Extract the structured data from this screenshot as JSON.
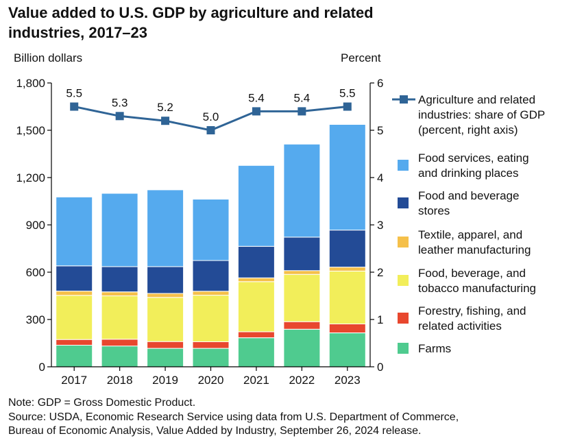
{
  "title_line1": "Value added to U.S. GDP by agriculture and related",
  "title_line2": "industries, 2017–23",
  "note": "Note: GDP = Gross Domestic Product.",
  "source_line1": "Source: USDA, Economic Research Service using data from U.S. Department of Commerce,",
  "source_line2": "Bureau of Economic Analysis, Value Added by Industry, September 26, 2024 release.",
  "chart_data": {
    "type": "bar",
    "stacked": true,
    "title": "Value added to U.S. GDP by agriculture and related industries, 2017–23",
    "categories": [
      "2017",
      "2018",
      "2019",
      "2020",
      "2021",
      "2022",
      "2023"
    ],
    "ylabel": "Billion dollars",
    "y2label": "Percent",
    "ylim": [
      0,
      1800
    ],
    "y2lim": [
      0,
      6
    ],
    "yticks": [
      "0",
      "300",
      "600",
      "900",
      "1,200",
      "1,500",
      "1,800"
    ],
    "y2ticks": [
      "0",
      "1",
      "2",
      "3",
      "4",
      "5",
      "6"
    ],
    "series": [
      {
        "name": "Farms",
        "color": "#4fcb8f",
        "values": [
          137,
          132,
          117,
          117,
          184,
          238,
          215
        ]
      },
      {
        "name": "Forestry, fishing, and related activities",
        "color": "#e8472e",
        "values": [
          36,
          43,
          43,
          42,
          38,
          48,
          57
        ]
      },
      {
        "name": "Food, beverage, and tobacco manufacturing",
        "color": "#f2ee5a",
        "values": [
          280,
          275,
          280,
          295,
          318,
          300,
          335
        ]
      },
      {
        "name": "Textile, apparel, and leather manufacturing",
        "color": "#f5c04a",
        "values": [
          27,
          25,
          25,
          25,
          24,
          24,
          25
        ]
      },
      {
        "name": "Food and beverage stores",
        "color": "#234b96",
        "values": [
          160,
          160,
          170,
          195,
          200,
          212,
          235
        ]
      },
      {
        "name": "Food services, eating and drinking places",
        "color": "#55aaee",
        "values": [
          437,
          465,
          487,
          389,
          513,
          590,
          670
        ]
      }
    ],
    "line_series": {
      "name": "Agriculture and related industries: share of GDP (percent, right axis)",
      "color": "#2f6496",
      "axis": "right",
      "values": [
        5.5,
        5.3,
        5.2,
        5.0,
        5.4,
        5.4,
        5.5
      ],
      "labels": [
        "5.5",
        "5.3",
        "5.2",
        "5.0",
        "5.4",
        "5.4",
        "5.5"
      ]
    },
    "legend": [
      {
        "lines": [
          "Agriculture and related",
          "industries: share of GDP",
          "(percent, right axis)"
        ],
        "color": "#2f6496",
        "kind": "line"
      },
      {
        "lines": [
          "Food services, eating",
          "and drinking places"
        ],
        "color": "#55aaee",
        "kind": "box"
      },
      {
        "lines": [
          "Food and beverage",
          "stores"
        ],
        "color": "#234b96",
        "kind": "box"
      },
      {
        "lines": [
          "Textile, apparel, and",
          "leather manufacturing"
        ],
        "color": "#f5c04a",
        "kind": "box"
      },
      {
        "lines": [
          "Food, beverage, and",
          "tobacco manufacturing"
        ],
        "color": "#f2ee5a",
        "kind": "box"
      },
      {
        "lines": [
          "Forestry, fishing, and",
          "related activities"
        ],
        "color": "#e8472e",
        "kind": "box"
      },
      {
        "lines": [
          "Farms"
        ],
        "color": "#4fcb8f",
        "kind": "box"
      }
    ],
    "legend_position": "right",
    "grid": false
  }
}
